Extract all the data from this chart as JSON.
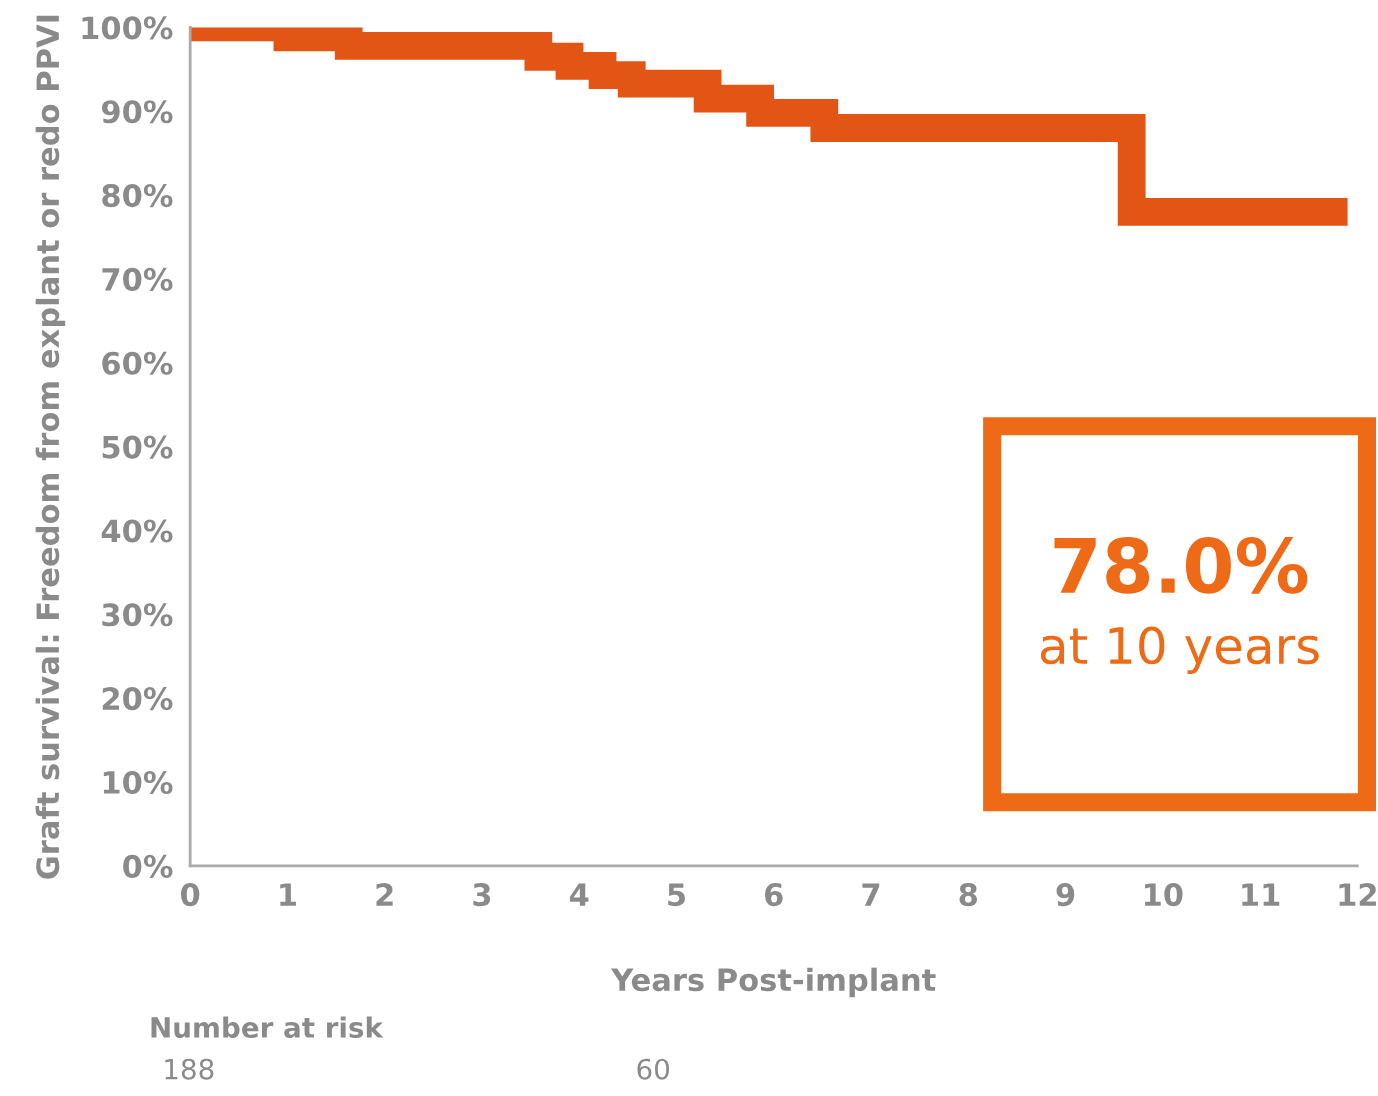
{
  "chart_data": {
    "type": "step",
    "xlabel": "Years Post-implant",
    "ylabel": "Graft survival: Freedom from explant or redo PPVI",
    "x": [
      0,
      1.0,
      1.63,
      3.58,
      3.9,
      4.24,
      4.54,
      5.32,
      5.86,
      6.52,
      9.68,
      11.9
    ],
    "series": [
      {
        "color": "#e25514",
        "values": [
          100,
          98.8,
          97.8,
          96.5,
          95.4,
          94.3,
          93.3,
          91.5,
          89.8,
          88.0,
          78.0,
          78.0
        ]
      }
    ],
    "xlim": [
      0,
      12
    ],
    "xticks": [
      0,
      1,
      2,
      3,
      4,
      5,
      6,
      7,
      8,
      9,
      10,
      11,
      12
    ],
    "ylim": [
      0,
      100
    ],
    "yticks": [
      {
        "value": 0,
        "label": "0%"
      },
      {
        "value": 10,
        "label": "10%"
      },
      {
        "value": 20,
        "label": "20%"
      },
      {
        "value": 30,
        "label": "30%"
      },
      {
        "value": 40,
        "label": "40%"
      },
      {
        "value": 50,
        "label": "50%"
      },
      {
        "value": 60,
        "label": "60%"
      },
      {
        "value": 70,
        "label": "70%"
      },
      {
        "value": 80,
        "label": "80%"
      },
      {
        "value": 90,
        "label": "90%"
      },
      {
        "value": 100,
        "label": "100%"
      }
    ],
    "grid": false,
    "legend": false,
    "annotations": [
      "78.0%",
      "at 10 years",
      "Number at risk",
      "188",
      "60"
    ]
  }
}
